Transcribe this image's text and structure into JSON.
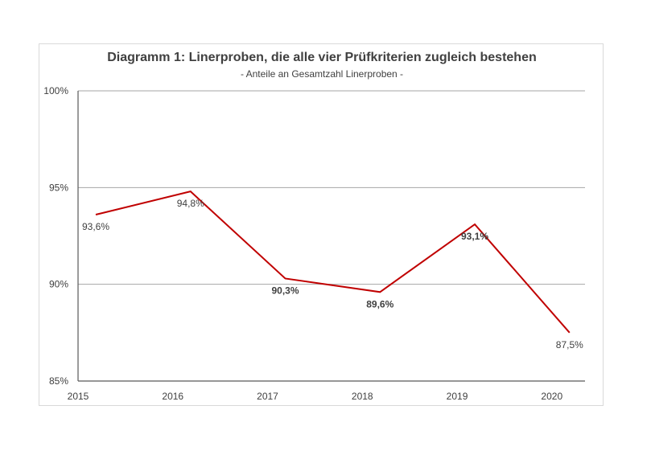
{
  "chart_data": {
    "type": "line",
    "title": "Diagramm 1: Linerproben, die alle vier Prüfkriterien zugleich bestehen",
    "subtitle": "- Anteile an Gesamtzahl Linerproben -",
    "xlabel": "",
    "ylabel": "",
    "ylim": [
      85,
      100
    ],
    "grid": true,
    "categories": [
      "2015",
      "2016",
      "2017",
      "2018",
      "2019",
      "2020"
    ],
    "y_ticks": [
      {
        "value": 100,
        "label": "100%"
      },
      {
        "value": 95,
        "label": "95%"
      },
      {
        "value": 90,
        "label": "90%"
      },
      {
        "value": 85,
        "label": "85%"
      }
    ],
    "series": [
      {
        "name": "Anteil",
        "color": "#c00000",
        "values": [
          93.6,
          94.8,
          90.3,
          89.6,
          93.1,
          87.5
        ],
        "data_labels": [
          "93,6%",
          "94,8%",
          "90,3%",
          "89,6%",
          "93,1%",
          "87,5%"
        ],
        "label_bold": [
          false,
          false,
          true,
          true,
          true,
          false
        ]
      }
    ]
  }
}
